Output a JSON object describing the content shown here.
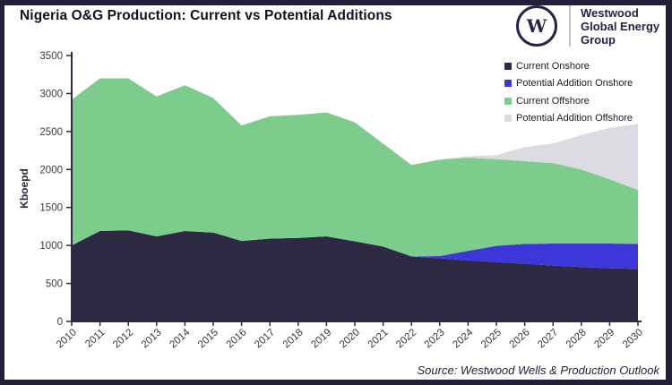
{
  "header": {
    "title": "Nigeria O&G Production: Current vs Potential Additions",
    "logo": {
      "monogram": "W",
      "lines": [
        "Westwood",
        "Global Energy",
        "Group"
      ]
    }
  },
  "footer": {
    "source": "Source: Westwood Wells & Production Outlook"
  },
  "colors": {
    "frame": "#24203a",
    "axis": "#2e2a44",
    "tick_text": "#3a3945",
    "current_onshore": "#2e2a44",
    "potential_addition_onshore": "#3d36d8",
    "current_offshore": "#7ccd8b",
    "potential_addition_offshore": "#dcdbe2"
  },
  "chart_data": {
    "type": "area",
    "stacked": true,
    "title": "Nigeria O&G Production: Current vs Potential Additions",
    "xlabel": "",
    "ylabel": "Kboepd",
    "ylim": [
      0,
      3500
    ],
    "yticks": [
      0,
      500,
      1000,
      1500,
      2000,
      2500,
      3000,
      3500
    ],
    "grid": false,
    "legend_position": "top-right",
    "x": [
      2010,
      2011,
      2012,
      2013,
      2014,
      2015,
      2016,
      2017,
      2018,
      2019,
      2020,
      2021,
      2022,
      2023,
      2024,
      2025,
      2026,
      2027,
      2028,
      2029,
      2030
    ],
    "series": [
      {
        "name": "Current Onshore",
        "color": "#2e2a44",
        "values": [
          1000,
          1190,
          1200,
          1120,
          1190,
          1170,
          1060,
          1090,
          1100,
          1120,
          1055,
          985,
          855,
          830,
          805,
          780,
          760,
          735,
          715,
          700,
          690
        ]
      },
      {
        "name": "Potential Addition Onshore",
        "color": "#3d36d8",
        "values": [
          0,
          0,
          0,
          0,
          0,
          0,
          0,
          0,
          0,
          0,
          0,
          0,
          0,
          30,
          125,
          215,
          260,
          290,
          310,
          325,
          330
        ]
      },
      {
        "name": "Current Offshore",
        "color": "#7ccd8b",
        "values": [
          1920,
          2010,
          2000,
          1840,
          1920,
          1770,
          1520,
          1610,
          1620,
          1630,
          1565,
          1355,
          1205,
          1270,
          1225,
          1140,
          1090,
          1060,
          975,
          845,
          710
        ]
      },
      {
        "name": "Potential Addition Offshore",
        "color": "#dcdbe2",
        "values": [
          0,
          0,
          0,
          0,
          0,
          0,
          0,
          0,
          0,
          0,
          0,
          0,
          0,
          0,
          20,
          55,
          185,
          255,
          455,
          680,
          870
        ]
      }
    ]
  }
}
